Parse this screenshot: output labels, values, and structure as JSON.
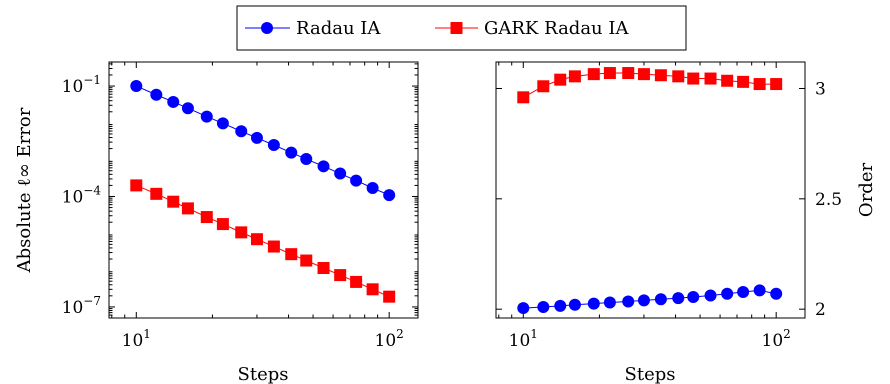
{
  "legend": {
    "entries": [
      {
        "label": "Radau IA",
        "color": "#0000ff",
        "marker": "circle"
      },
      {
        "label": "GARK Radau IA",
        "color": "#ff0000",
        "marker": "square"
      }
    ]
  },
  "chart_data": [
    {
      "type": "line",
      "title": "",
      "xlabel": "Steps",
      "ylabel": "Absolute ℓ∞ Error",
      "xscale": "log",
      "yscale": "log",
      "xlim": [
        7.8,
        130
      ],
      "ylim": [
        5e-08,
        0.45
      ],
      "xticks": [
        {
          "value": 10,
          "base": "10",
          "exp": "1"
        },
        {
          "value": 100,
          "base": "10",
          "exp": "2"
        }
      ],
      "yticks": [
        {
          "value": 1e-07,
          "base": "10",
          "exp": "−7"
        },
        {
          "value": 0.0001,
          "base": "10",
          "exp": "−4"
        },
        {
          "value": 0.1,
          "base": "10",
          "exp": "−1"
        }
      ],
      "grid": false,
      "x": [
        10,
        12,
        14,
        16,
        19,
        22,
        26,
        30,
        35,
        41,
        47,
        55,
        64,
        74,
        86,
        100
      ],
      "series": [
        {
          "name": "Radau IA",
          "color": "#0000ff",
          "marker": "circle",
          "values": [
            0.1,
            0.058,
            0.037,
            0.025,
            0.0148,
            0.0097,
            0.0059,
            0.0039,
            0.0025,
            0.00155,
            0.00104,
            0.00066,
            0.00042,
            0.00027,
            0.00017,
            0.000109
          ]
        },
        {
          "name": "GARK Radau IA",
          "color": "#ff0000",
          "marker": "square",
          "values": [
            0.0002,
            0.000118,
            7.22e-05,
            4.75e-05,
            2.76e-05,
            1.78e-05,
            1.06e-05,
            6.91e-06,
            4.37e-06,
            2.71e-06,
            1.82e-06,
            1.14e-06,
            7.32e-07,
            4.78e-07,
            3.01e-07,
            1.9e-07
          ]
        }
      ]
    },
    {
      "type": "line",
      "title": "",
      "xlabel": "Steps",
      "ylabel": "Order",
      "xscale": "log",
      "yscale": "linear",
      "xlim": [
        7.8,
        130
      ],
      "ylim": [
        1.96,
        3.12
      ],
      "xticks": [
        {
          "value": 10,
          "base": "10",
          "exp": "1"
        },
        {
          "value": 100,
          "base": "10",
          "exp": "2"
        }
      ],
      "yticks": [
        {
          "value": 2,
          "label": "2"
        },
        {
          "value": 2.5,
          "label": "2.5"
        },
        {
          "value": 3,
          "label": "3"
        }
      ],
      "y_axis_side": "right",
      "grid": false,
      "x": [
        10,
        12,
        14,
        16,
        19,
        22,
        26,
        30,
        35,
        41,
        47,
        55,
        64,
        74,
        86,
        100
      ],
      "series": [
        {
          "name": "Radau IA",
          "color": "#0000ff",
          "marker": "circle",
          "values": [
            2.005,
            2.01,
            2.015,
            2.02,
            2.025,
            2.03,
            2.035,
            2.04,
            2.045,
            2.05,
            2.055,
            2.062,
            2.07,
            2.078,
            2.085,
            2.07
          ]
        },
        {
          "name": "GARK Radau IA",
          "color": "#ff0000",
          "marker": "square",
          "values": [
            2.96,
            3.01,
            3.04,
            3.055,
            3.065,
            3.07,
            3.07,
            3.065,
            3.06,
            3.055,
            3.045,
            3.045,
            3.035,
            3.03,
            3.02,
            3.02
          ]
        }
      ]
    }
  ]
}
